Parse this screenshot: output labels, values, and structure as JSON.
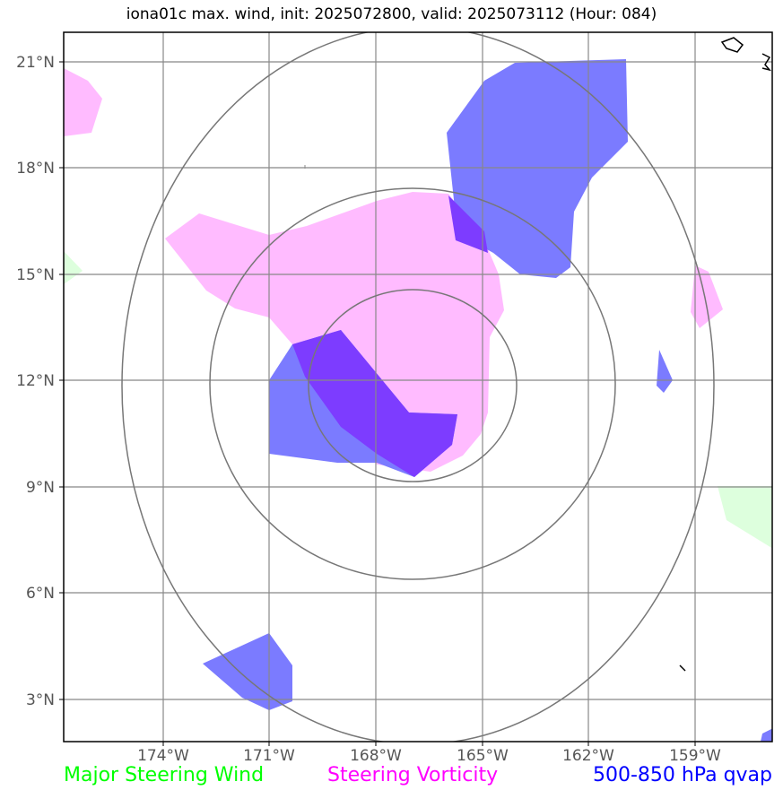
{
  "title": "iona01c max. wind, init: 2025072800, valid: 2025073112 (Hour: 084)",
  "lat_labels": [
    "21°N",
    "18°N",
    "15°N",
    "12°N",
    "9°N",
    "6°N",
    "3°N"
  ],
  "lon_labels": [
    "174°W",
    "171°W",
    "168°W",
    "165°W",
    "162°W",
    "159°W"
  ],
  "legend": [
    {
      "label": "Major Steering Wind",
      "color": "#00ff00"
    },
    {
      "label": "Steering Vorticity",
      "color": "#ff00ff"
    },
    {
      "label": "500-850 hPa qvap",
      "color": "#0000ff"
    }
  ],
  "colors": {
    "steering_wind_fill": "#ddffdd",
    "vorticity_fill": "#ffbbff",
    "qvap_fill": "#7b7bff",
    "overlap_fill": "#7d3cff",
    "grid": "#888888",
    "range_rings": "#777777",
    "coastline": "#000000"
  }
}
